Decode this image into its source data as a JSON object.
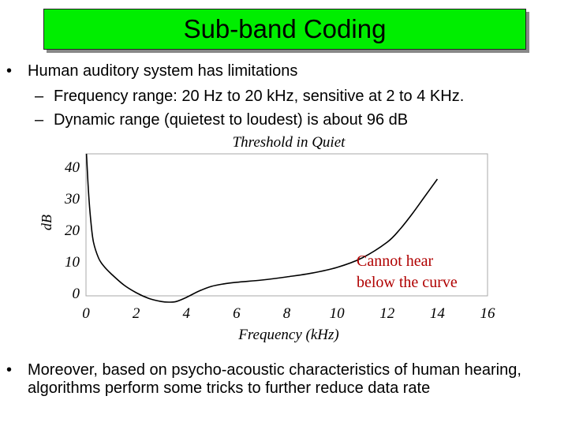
{
  "slide": {
    "title": "Sub-band Coding",
    "bullets": [
      {
        "text": "Human auditory system has limitations",
        "subitems": [
          "Frequency range: 20 Hz to 20 kHz, sensitive at 2 to 4 KHz.",
          "Dynamic range (quietest to loudest) is about 96 dB"
        ]
      },
      {
        "text": "Moreover, based on psycho-acoustic characteristics of human hearing, algorithms perform some tricks to further reduce data rate"
      }
    ],
    "bullet_symbol": "•",
    "dash_symbol": "–"
  },
  "chart_data": {
    "type": "line",
    "title": "Threshold in Quiet",
    "xlabel": "Frequency (kHz)",
    "ylabel": "dB",
    "xlim": [
      0,
      16
    ],
    "ylim": [
      -3,
      44
    ],
    "xticks": [
      "0",
      "2",
      "4",
      "6",
      "8",
      "10",
      "12",
      "14",
      "16"
    ],
    "yticks": [
      "0",
      "10",
      "20",
      "30",
      "40"
    ],
    "annotation": [
      "Cannot hear",
      "below the curve"
    ],
    "annotation_color": "#b00000",
    "grid": false,
    "series": [
      {
        "x": [
          0.02,
          0.1,
          0.2,
          0.3,
          0.5,
          0.7,
          1.0,
          1.5,
          2.0,
          2.5,
          3.0,
          3.3,
          3.6,
          4.0,
          4.5,
          5.0,
          5.5,
          6.0,
          7.0,
          8.0,
          9.0,
          10.0,
          11.0,
          12.0,
          12.5,
          13.0,
          13.5,
          14.0
        ],
        "y": [
          44,
          32,
          22,
          16,
          11,
          8.5,
          6.0,
          2.5,
          0.0,
          -1.8,
          -2.8,
          -3.0,
          -2.8,
          -1.5,
          0.5,
          2.0,
          2.8,
          3.3,
          4.0,
          5.0,
          6.2,
          8.0,
          11.0,
          16.0,
          20.0,
          25.0,
          30.5,
          36.0
        ]
      }
    ]
  }
}
